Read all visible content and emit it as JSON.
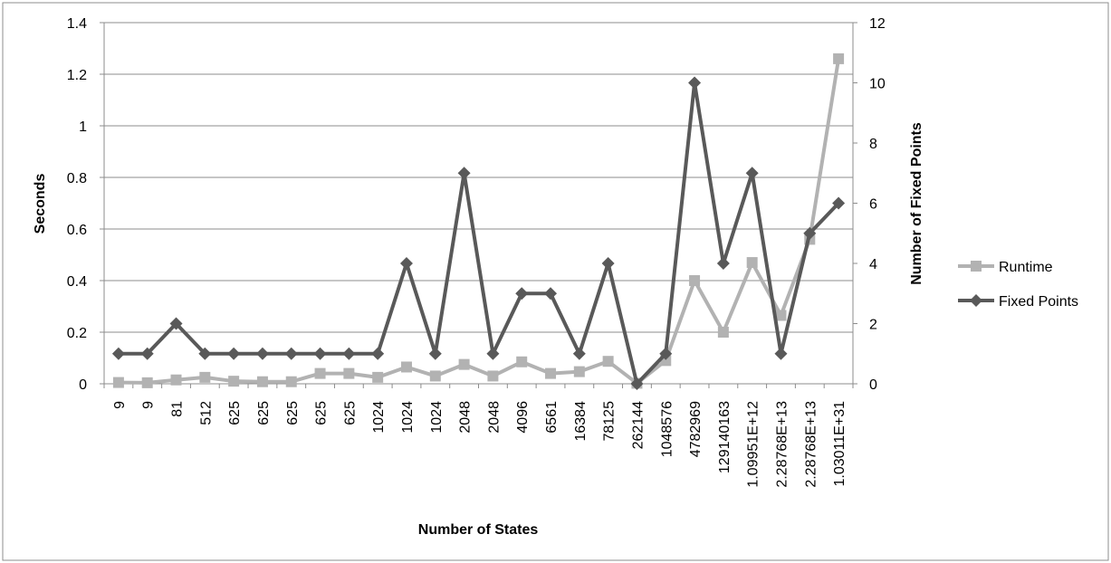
{
  "chart_data": {
    "type": "line",
    "xlabel": "Number of States",
    "ylabel": "Seconds",
    "y2label": "Number of Fixed Points",
    "categories": [
      "9",
      "9",
      "81",
      "512",
      "625",
      "625",
      "625",
      "625",
      "625",
      "1024",
      "1024",
      "1024",
      "2048",
      "2048",
      "4096",
      "6561",
      "16384",
      "78125",
      "262144",
      "1048576",
      "4782969",
      "129140163",
      "1.09951E+12",
      "2.28768E+13",
      "2.28768E+13",
      "1.03011E+31"
    ],
    "ylim": [
      0,
      1.4
    ],
    "y_ticks": [
      "0",
      "0.2",
      "0.4",
      "0.6",
      "0.8",
      "1",
      "1.2",
      "1.4"
    ],
    "y2lim": [
      0,
      12
    ],
    "y2_ticks": [
      "0",
      "2",
      "4",
      "6",
      "8",
      "10",
      "12"
    ],
    "grid": true,
    "legend_position": "right",
    "series": [
      {
        "name": "Runtime",
        "axis": "left",
        "color": "#b2b2b2",
        "marker": "square",
        "values": [
          0.005,
          0.004,
          0.015,
          0.025,
          0.01,
          0.008,
          0.008,
          0.04,
          0.04,
          0.025,
          0.065,
          0.03,
          0.075,
          0.03,
          0.085,
          0.04,
          0.047,
          0.087,
          0.002,
          0.09,
          0.4,
          0.2,
          0.47,
          0.265,
          0.56,
          1.26
        ]
      },
      {
        "name": "Fixed Points",
        "axis": "right",
        "color": "#595959",
        "marker": "diamond",
        "values": [
          1,
          1,
          2,
          1,
          1,
          1,
          1,
          1,
          1,
          1,
          4,
          1,
          7,
          1,
          3,
          3,
          1,
          4,
          0,
          1,
          10,
          4,
          7,
          1,
          5,
          6
        ]
      }
    ]
  }
}
